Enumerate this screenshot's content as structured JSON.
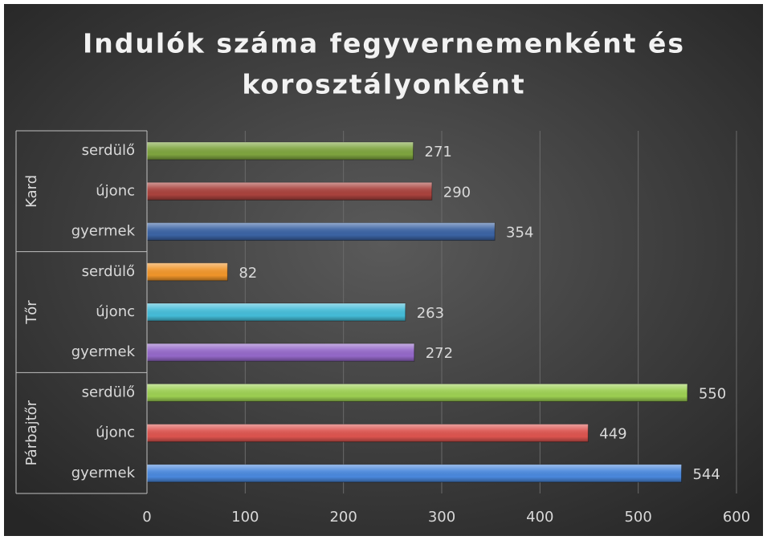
{
  "chart_data": {
    "type": "bar",
    "title": [
      "Indulók száma fegyvernemenként és",
      "korosztályonként"
    ],
    "groups": [
      {
        "name": "Kard",
        "categories": [
          "serdülő",
          "újonc",
          "gyermek"
        ],
        "values": [
          271,
          290,
          354
        ],
        "colors": [
          "#7ea43f",
          "#a9423d",
          "#3b63a3"
        ]
      },
      {
        "name": "Tőr",
        "categories": [
          "serdülő",
          "újonc",
          "gyermek"
        ],
        "values": [
          82,
          263,
          272
        ],
        "colors": [
          "#f0952a",
          "#45bcd8",
          "#9468c8"
        ]
      },
      {
        "name": "Párbajtőr",
        "categories": [
          "serdülő",
          "újonc",
          "gyermek"
        ],
        "values": [
          550,
          449,
          544
        ],
        "colors": [
          "#9ccf52",
          "#dc544f",
          "#4a88dc"
        ]
      }
    ],
    "xlim": [
      0,
      600
    ],
    "xticks": [
      0,
      100,
      200,
      300,
      400,
      500,
      600
    ],
    "grid": true
  }
}
